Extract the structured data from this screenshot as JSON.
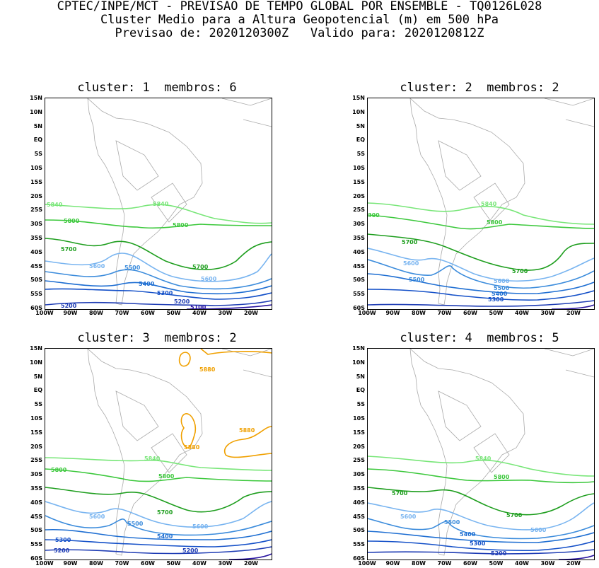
{
  "header": {
    "line1": "CPTEC/INPE/MCT - PREVISAO DE TEMPO GLOBAL POR ENSEMBLE - TQ0126L028",
    "line2": "Cluster Medio para a Altura Geopotencial (m) em 500 hPa",
    "line3": "Previsao de: 2020120300Z   Valido para: 2020120812Z"
  },
  "lat_labels": [
    "15N",
    "10N",
    "5N",
    "EQ",
    "5S",
    "10S",
    "15S",
    "20S",
    "25S",
    "30S",
    "35S",
    "40S",
    "45S",
    "50S",
    "55S",
    "60S"
  ],
  "lon_labels": [
    "100W",
    "90W",
    "80W",
    "70W",
    "60W",
    "50W",
    "40W",
    "30W",
    "20W"
  ],
  "colors": {
    "c5880": "#f0a000",
    "c5840": "#78e678",
    "c5800": "#3cc83c",
    "c5700": "#1e9e1e",
    "c5600": "#78b4f0",
    "c5500": "#3c8cdc",
    "c5400": "#1e6ed2",
    "c5300": "#1450c8",
    "c5200": "#1e3cb4",
    "c5100": "#2814a0",
    "land": "#aaaaaa"
  },
  "panels": [
    {
      "title": "cluster: 1  membros: 6",
      "labels": {
        "l5840a": "5840",
        "l5840b": "5840",
        "l5800a": "5800",
        "l5800b": "5800",
        "l5700a": "5700",
        "l5700b": "5700",
        "l5600a": "5600",
        "l5600b": "5600",
        "l5500": "5500",
        "l5400": "5400",
        "l5300": "5300",
        "l5200a": "5200",
        "l5200b": "5200",
        "l5100": "5100"
      }
    },
    {
      "title": "cluster: 2  membros: 2",
      "labels": {
        "l5800x": "300",
        "l5840": "5840",
        "l5800": "5800",
        "l5700a": "5700",
        "l5700b": "5700",
        "l5600a": "5600",
        "l5600b": "5600",
        "l5500a": "5500",
        "l5500b": "5500",
        "l5400": "5400",
        "l5300": "5300"
      }
    },
    {
      "title": "cluster: 3  membros: 2",
      "labels": {
        "l5880a": "5880",
        "l5880b": "5880",
        "l5880c": "5880",
        "l5840": "5840",
        "l5800a": "5800",
        "l5800b": "5800",
        "l5700": "5700",
        "l5600a": "5600",
        "l5600b": "5600",
        "l5500": "5500",
        "l5400": "5400",
        "l5300": "5300",
        "l5200a": "5200",
        "l5200b": "5200"
      }
    },
    {
      "title": "cluster: 4  membros: 5",
      "labels": {
        "l5840": "5840",
        "l5800": "5800",
        "l5700a": "5700",
        "l5700b": "5700",
        "l5600a": "5600",
        "l5600b": "5600",
        "l5500": "5500",
        "l5400": "5400",
        "l5300": "5300",
        "l5200": "5200"
      }
    }
  ]
}
